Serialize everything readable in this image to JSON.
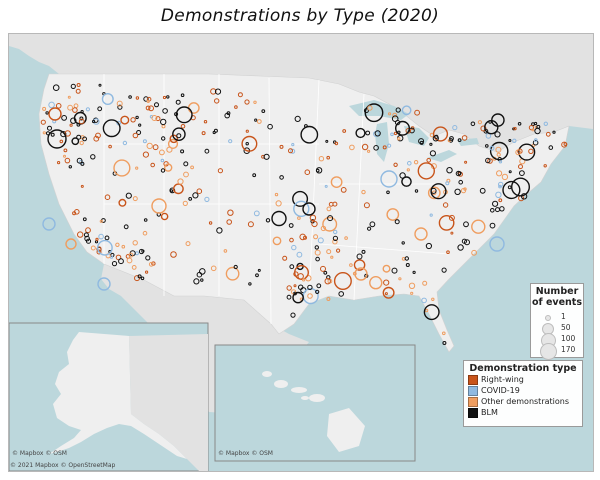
{
  "title": "Demonstrations by Type (2020)",
  "colors": {
    "ocean": "#bcd7dc",
    "land": "#efefef",
    "foreign": "#e2e2e2",
    "border": "#ffffff",
    "right_wing": "#c8541a",
    "covid": "#8fb9e0",
    "other": "#ef9d5f",
    "blm": "#111111"
  },
  "size_legend": {
    "title": "Number of events",
    "entries": [
      {
        "label": "1",
        "value": 1
      },
      {
        "label": "50",
        "value": 50
      },
      {
        "label": "100",
        "value": 100
      },
      {
        "label": "170",
        "value": 170
      }
    ]
  },
  "type_legend": {
    "title": "Demonstration type",
    "entries": [
      {
        "label": "Right-wing",
        "color": "#c8541a"
      },
      {
        "label": "COVID-19",
        "color": "#8fb9e0"
      },
      {
        "label": "Other demonstrations",
        "color": "#ef9d5f"
      },
      {
        "label": "BLM",
        "color": "#111111"
      }
    ]
  },
  "credits": {
    "main": "© 2021 Mapbox © OpenStreetMap",
    "alaska": "© Mapbox © OSM",
    "hawaii": "© Mapbox © OSM"
  }
}
